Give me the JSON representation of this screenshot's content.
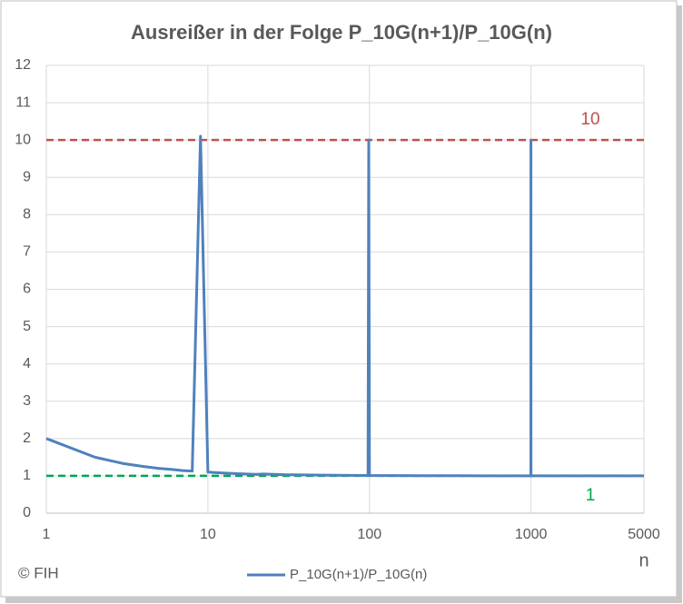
{
  "chart_data": {
    "type": "line",
    "title": "Ausreißer in der Folge P_10G(n+1)/P_10G(n)",
    "x_label": "n",
    "x_scale": "log",
    "x": [
      1,
      2,
      3,
      4,
      5,
      6,
      7,
      8,
      9,
      10,
      11,
      12,
      15,
      20,
      22,
      30,
      50,
      98,
      99,
      100,
      101,
      200,
      500,
      998,
      999,
      1000,
      1001,
      2000,
      5000
    ],
    "series": [
      {
        "name": "P_10G(n+1)/P_10G(n)",
        "color": "#4f81bd",
        "values": [
          2,
          1.5,
          1.33,
          1.25,
          1.2,
          1.17,
          1.14,
          1.13,
          10.1,
          1.1,
          1.09,
          1.08,
          1.06,
          1.04,
          1.05,
          1.03,
          1.02,
          1.01,
          10,
          1.01,
          1.01,
          1.005,
          1.002,
          1.001,
          10,
          1.001,
          1.001,
          1.0005,
          1.0002
        ]
      }
    ],
    "reference_lines": [
      {
        "value": 10,
        "color": "#c0504d"
      },
      {
        "value": 1,
        "color": "#00a651"
      }
    ],
    "xlim": [
      1,
      5000
    ],
    "xticks": [
      1,
      10,
      100,
      1000,
      5000
    ],
    "ylim": [
      0,
      12
    ],
    "yticks": [
      0,
      1,
      2,
      3,
      4,
      5,
      6,
      7,
      8,
      9,
      10,
      11,
      12
    ],
    "grid": true,
    "legend": "bottom",
    "footer_note": "© FIH"
  }
}
